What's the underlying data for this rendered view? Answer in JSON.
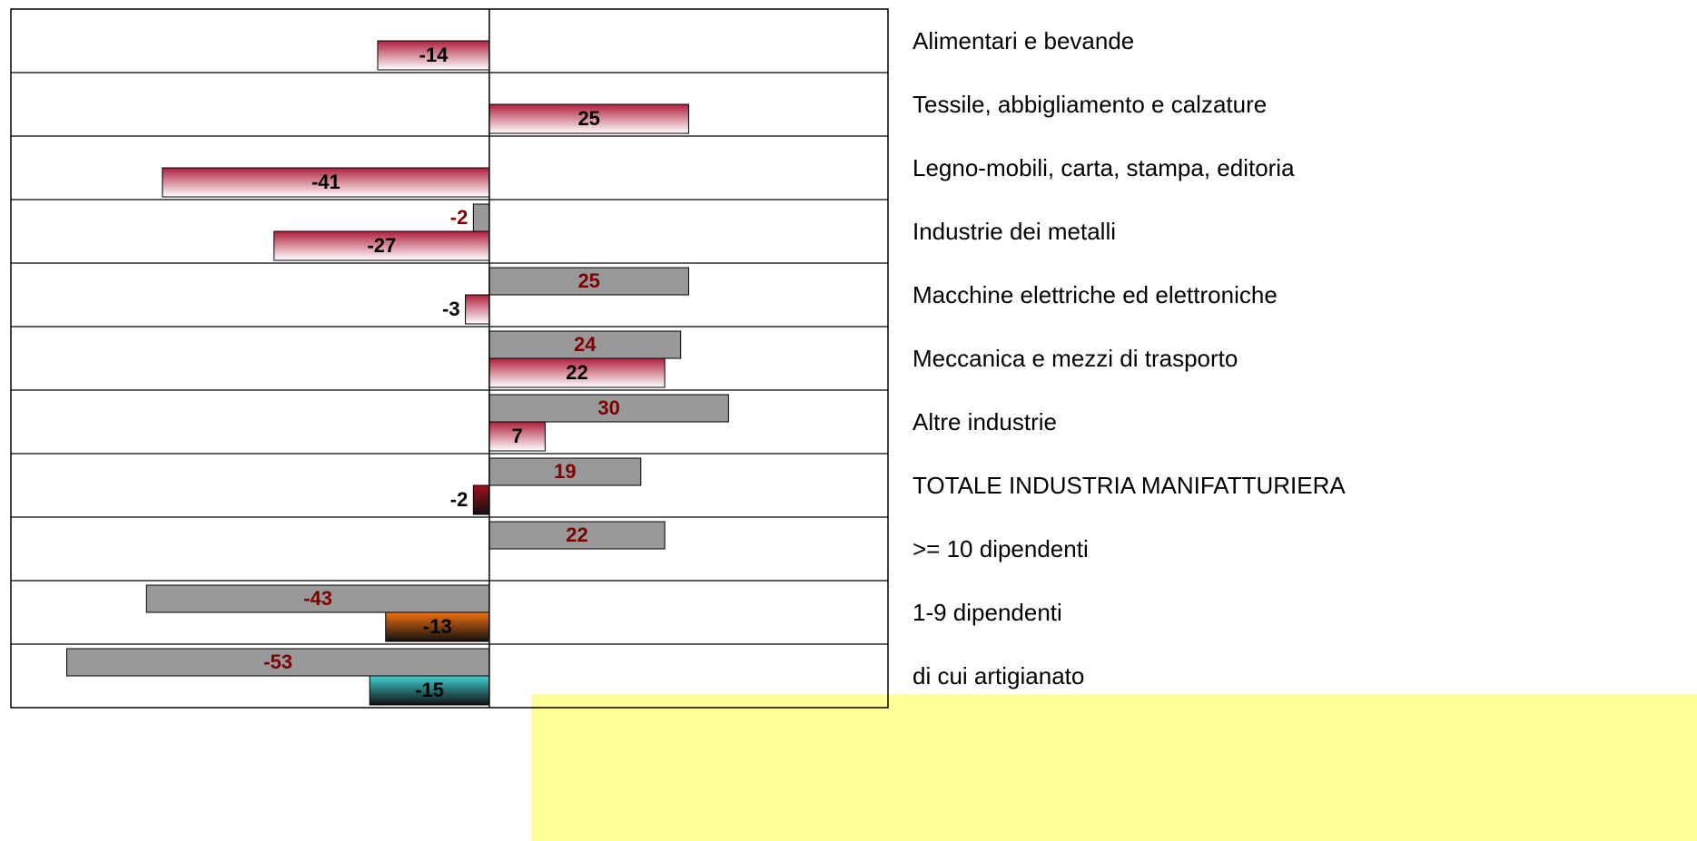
{
  "chart_data": {
    "type": "hbar",
    "categories": [
      "Alimentari e bevande",
      "Tessile, abbigliamento e calzature",
      "Legno-mobili, carta, stampa, editoria",
      "Industrie dei metalli",
      "Macchine elettriche ed elettroniche",
      "Meccanica e mezzi di trasporto",
      "Altre industrie",
      "TOTALE INDUSTRIA MANIFATTURIERA",
      ">= 10 dipendenti",
      "1-9 dipendenti",
      "di cui artigianato"
    ],
    "xlim": [
      -60,
      50
    ],
    "series": [
      {
        "color": "#999999",
        "label_color": "#800000",
        "gradient": false,
        "values": [
          null,
          null,
          null,
          -2,
          25,
          24,
          30,
          19,
          22,
          -43,
          -53
        ]
      },
      {
        "color": "#b0203c",
        "label_color": "#000000",
        "gradient": true,
        "colors": [
          "#b0203c",
          "#b0203c",
          "#b0203c",
          "#b0203c",
          "#b0203c",
          "#b0203c",
          "#b0203c",
          "#a01020",
          "#b0203c",
          "#f07010",
          "#40d0d0"
        ],
        "values": [
          -14,
          25,
          -41,
          -27,
          -3,
          22,
          7,
          -2,
          null,
          -13,
          -15
        ]
      }
    ]
  }
}
